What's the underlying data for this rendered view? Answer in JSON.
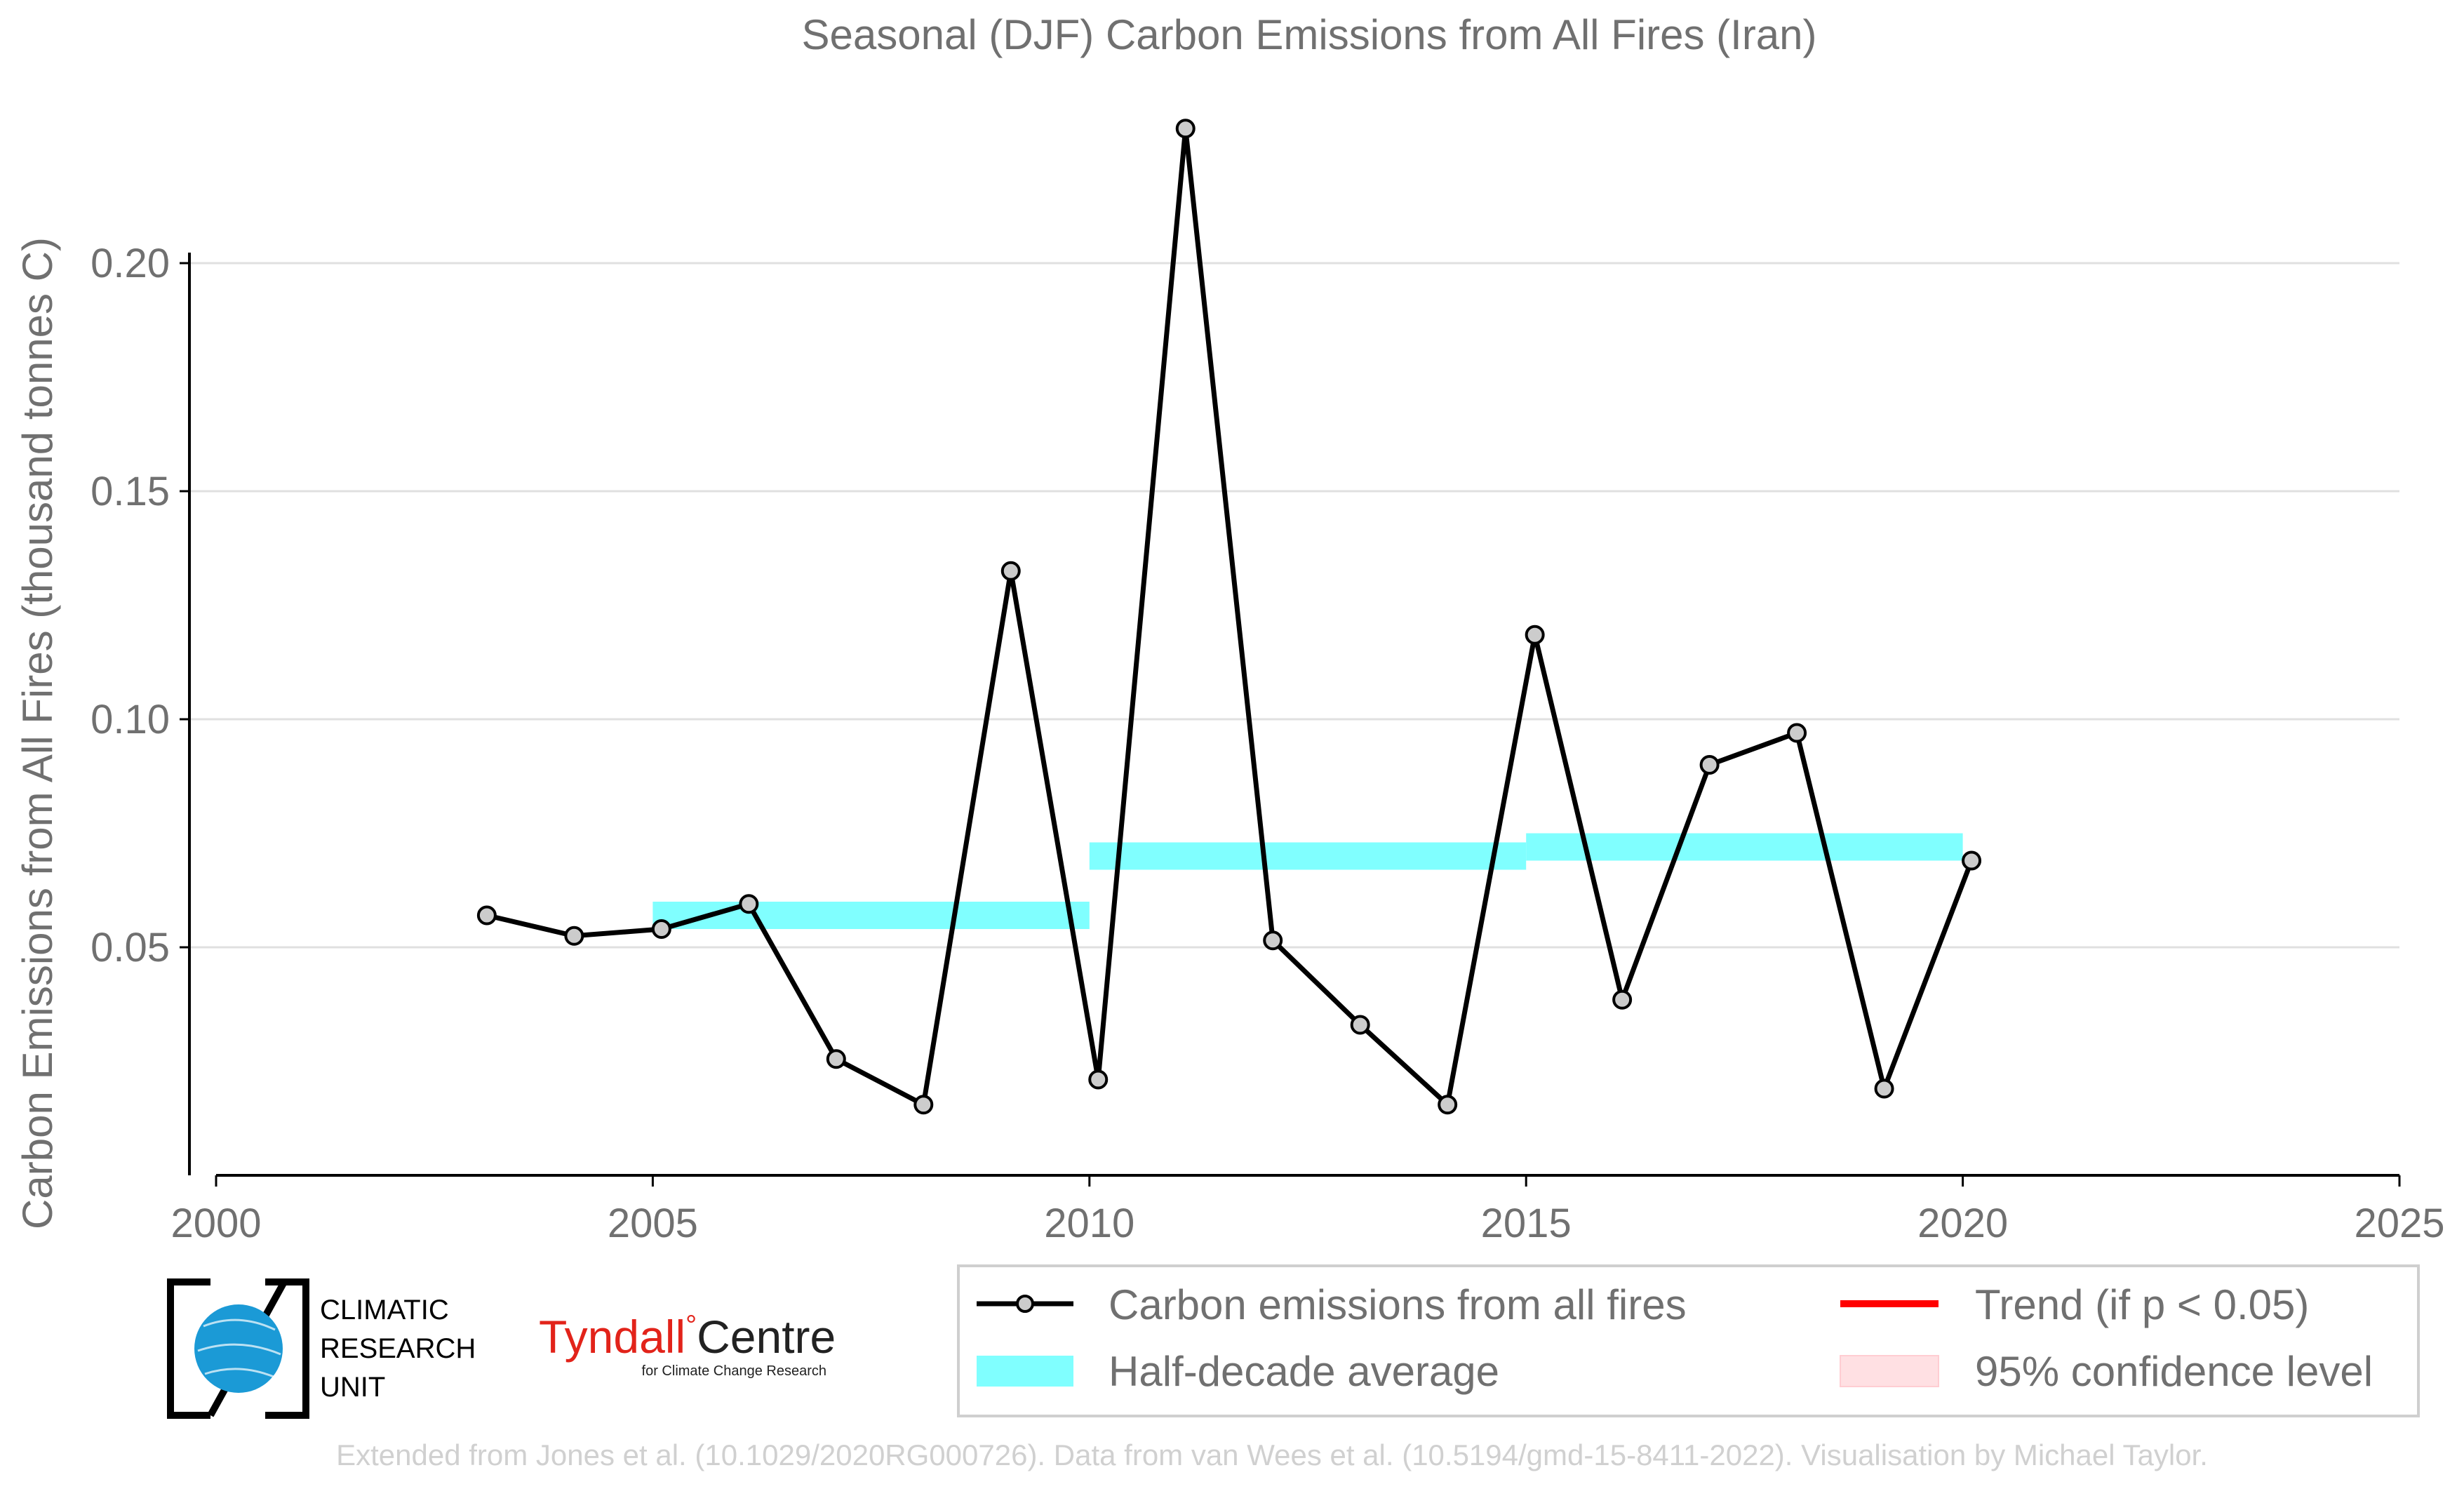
{
  "chart_data": {
    "type": "line",
    "title": "Seasonal (DJF) Carbon Emissions from All Fires (Iran)",
    "xlabel": "",
    "ylabel": "Carbon Emissions from All Fires (thousand tonnes C)",
    "xlim": [
      2000,
      2025
    ],
    "ylim": [
      0,
      0.235
    ],
    "x_ticks": [
      "2000",
      "2005",
      "2010",
      "2015",
      "2020",
      "2025"
    ],
    "y_ticks": [
      "0.05",
      "0.10",
      "0.15",
      "0.20"
    ],
    "grid": "horizontal",
    "series": [
      {
        "name": "Carbon emissions from all fires",
        "style": "line-with-markers",
        "color": "#000000",
        "marker_fill": "#cccccc",
        "x": [
          2003,
          2004,
          2005,
          2006,
          2007,
          2008,
          2009,
          2010,
          2011,
          2012,
          2013,
          2014,
          2015,
          2016,
          2017,
          2018,
          2019,
          2020
        ],
        "values": [
          0.057,
          0.0525,
          0.054,
          0.0595,
          0.0255,
          0.0155,
          0.1325,
          0.021,
          0.2295,
          0.0515,
          0.033,
          0.0155,
          0.1185,
          0.0385,
          0.09,
          0.097,
          0.019,
          0.069
        ]
      },
      {
        "name": "Half-decade average",
        "style": "band",
        "color": "#80ffff",
        "segments": [
          {
            "x_start": 2005,
            "x_end": 2010,
            "y_low": 0.054,
            "y_high": 0.06
          },
          {
            "x_start": 2010,
            "x_end": 2015,
            "y_low": 0.067,
            "y_high": 0.073
          },
          {
            "x_start": 2015,
            "x_end": 2020,
            "y_low": 0.069,
            "y_high": 0.075
          }
        ]
      }
    ],
    "legend": {
      "placement": "bottom-right",
      "items": [
        {
          "label": "Carbon emissions from all fires",
          "kind": "line-marker",
          "color": "#000000"
        },
        {
          "label": "Trend (if p < 0.05)",
          "kind": "line",
          "color": "#ff0000"
        },
        {
          "label": "Half-decade average",
          "kind": "band",
          "color": "#80ffff"
        },
        {
          "label": "95% confidence level",
          "kind": "band",
          "color": "#ffdde0"
        }
      ]
    }
  },
  "logos": {
    "cru_lines": [
      "CLIMATIC",
      "RESEARCH",
      "UNIT"
    ],
    "tyndall_name": "Tyndall",
    "tyndall_degree": "°",
    "tyndall_centre": "Centre",
    "tyndall_sub": "for Climate Change Research"
  },
  "footer": {
    "credit": "Extended from Jones et al. (10.1029/2020RG000726). Data from van Wees et al. (10.5194/gmd-15-8411-2022). Visualisation by Michael Taylor."
  },
  "colors": {
    "text": "#707070",
    "grid": "#e0e0e0",
    "axis": "#000000",
    "footer": "#d0d0d0",
    "tyndall_red": "#e2231a",
    "cru_blue": "#1b9ad6"
  }
}
